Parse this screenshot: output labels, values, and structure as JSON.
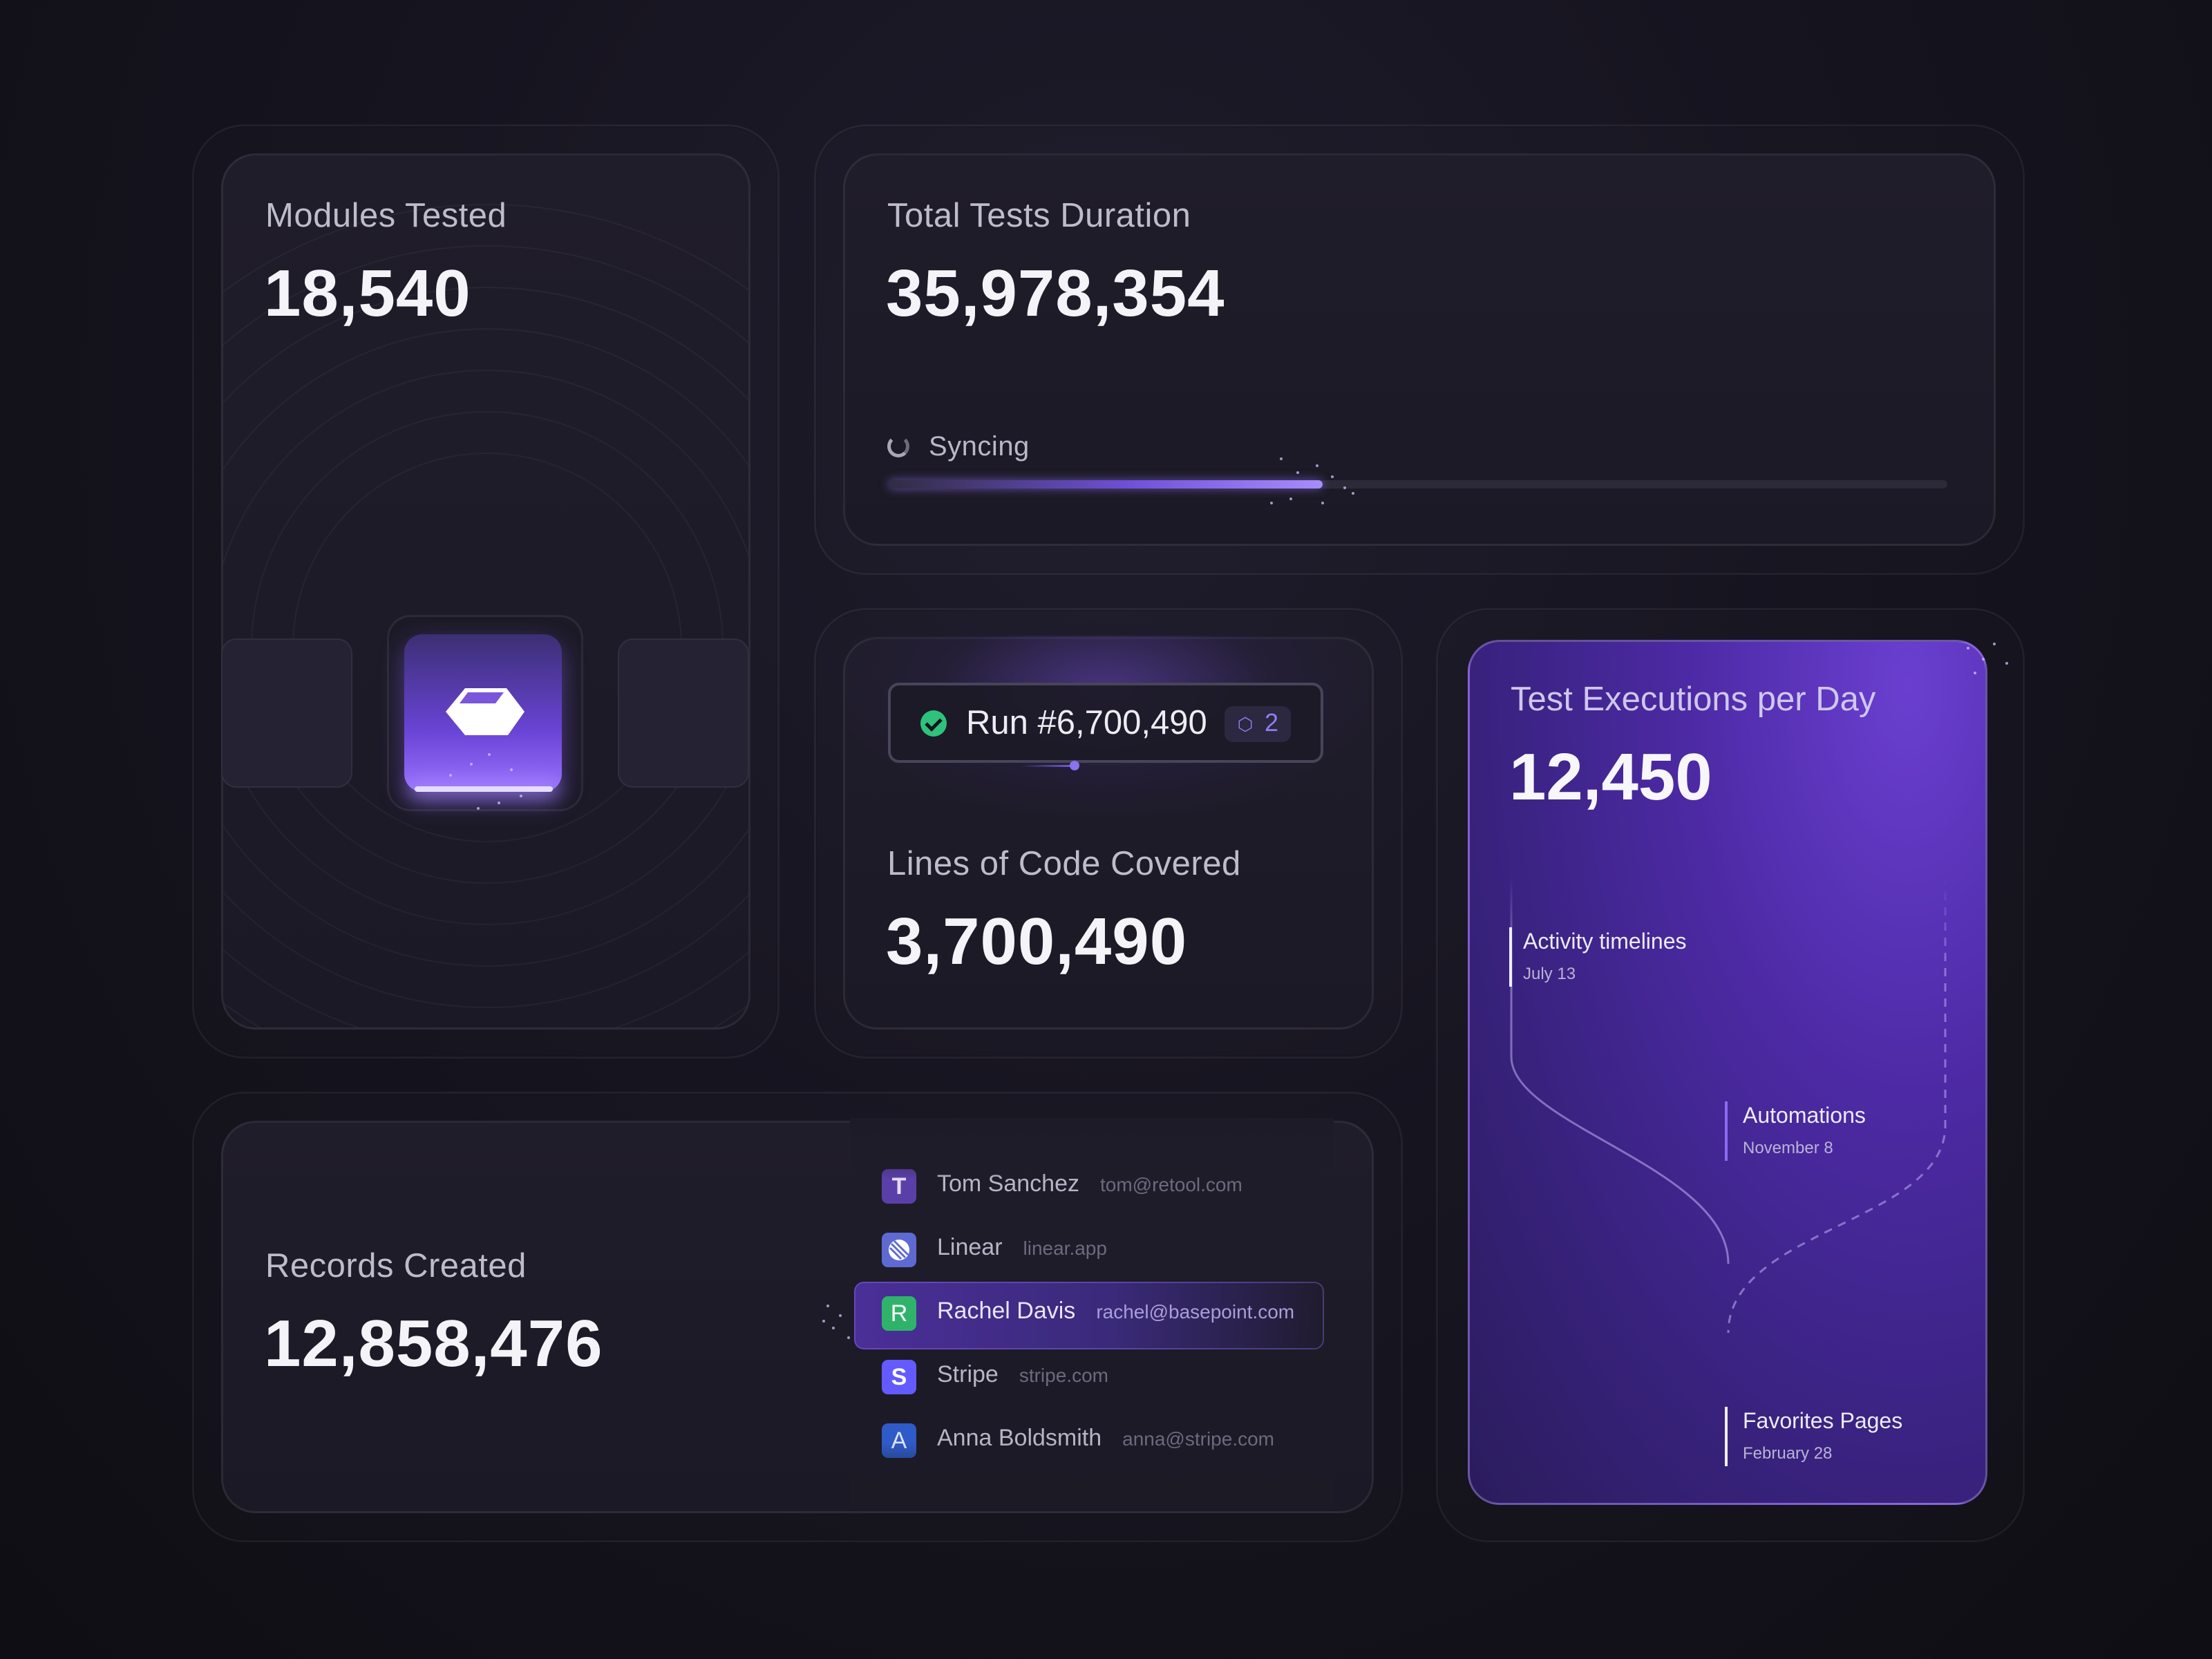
{
  "modules": {
    "label": "Modules Tested",
    "value": "18,540"
  },
  "duration": {
    "label": "Total Tests Duration",
    "value": "35,978,354",
    "sync_label": "Syncing",
    "progress": 0.41
  },
  "coverage": {
    "run_label": "Run #6,700,490",
    "badge_count": "2",
    "label": "Lines of Code Covered",
    "value": "3,700,490"
  },
  "records": {
    "label": "Records Created",
    "value": "12,858,476",
    "items": [
      {
        "initial": "T",
        "name": "Tom Sanchez",
        "detail": "tom@retool.com",
        "icon_color": "#5b3fa8",
        "icon": "letter-avatar"
      },
      {
        "initial": "",
        "name": "Linear",
        "detail": "linear.app",
        "icon_color": "#5e6ad2",
        "icon": "linear-logo-icon"
      },
      {
        "initial": "R",
        "name": "Rachel Davis",
        "detail": "rachel@basepoint.com",
        "icon_color": "#2fb36b",
        "icon": "letter-avatar",
        "selected": true
      },
      {
        "initial": "S",
        "name": "Stripe",
        "detail": "stripe.com",
        "icon_color": "#635bff",
        "icon": "stripe-logo-icon"
      },
      {
        "initial": "A",
        "name": "Anna Boldsmith",
        "detail": "anna@stripe.com",
        "icon_color": "#2f5bc8",
        "icon": "letter-avatar"
      }
    ]
  },
  "executions": {
    "label": "Test Executions per Day",
    "value": "12,450",
    "events": [
      {
        "title": "Activity timelines",
        "date": "July 13"
      },
      {
        "title": "Automations",
        "date": "November 8"
      },
      {
        "title": "Favorites Pages",
        "date": "February 28"
      }
    ]
  },
  "colors": {
    "accent": "#7c5ce8",
    "success": "#2fc27c",
    "background": "#16141f"
  }
}
